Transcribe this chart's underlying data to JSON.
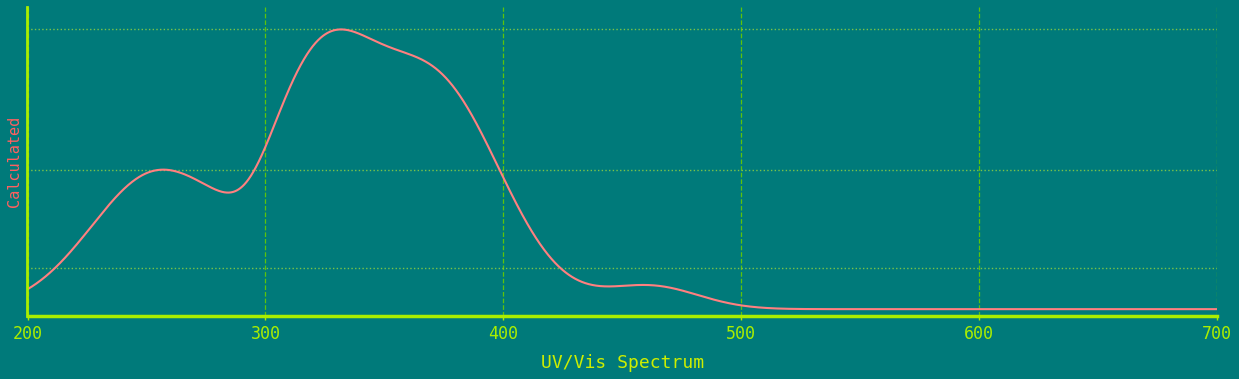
{
  "background_color": "#007A7A",
  "plot_bg_color": "#007A7A",
  "line_color": "#FF8080",
  "grid_color_dashed": "#66CC00",
  "grid_color_dotted": "#88CC44",
  "axis_color": "#AAEE00",
  "tick_label_color": "#AAEE00",
  "xlabel": "UV/Vis Spectrum",
  "ylabel": "Calculated",
  "xlabel_color": "#CCEE00",
  "ylabel_color": "#FF6060",
  "xmin": 200,
  "xmax": 700,
  "xlabel_fontsize": 13,
  "ylabel_fontsize": 11,
  "tick_fontsize": 12,
  "xticks": [
    200,
    300,
    400,
    500,
    600,
    700
  ],
  "font_family": "monospace",
  "line_width": 1.5
}
